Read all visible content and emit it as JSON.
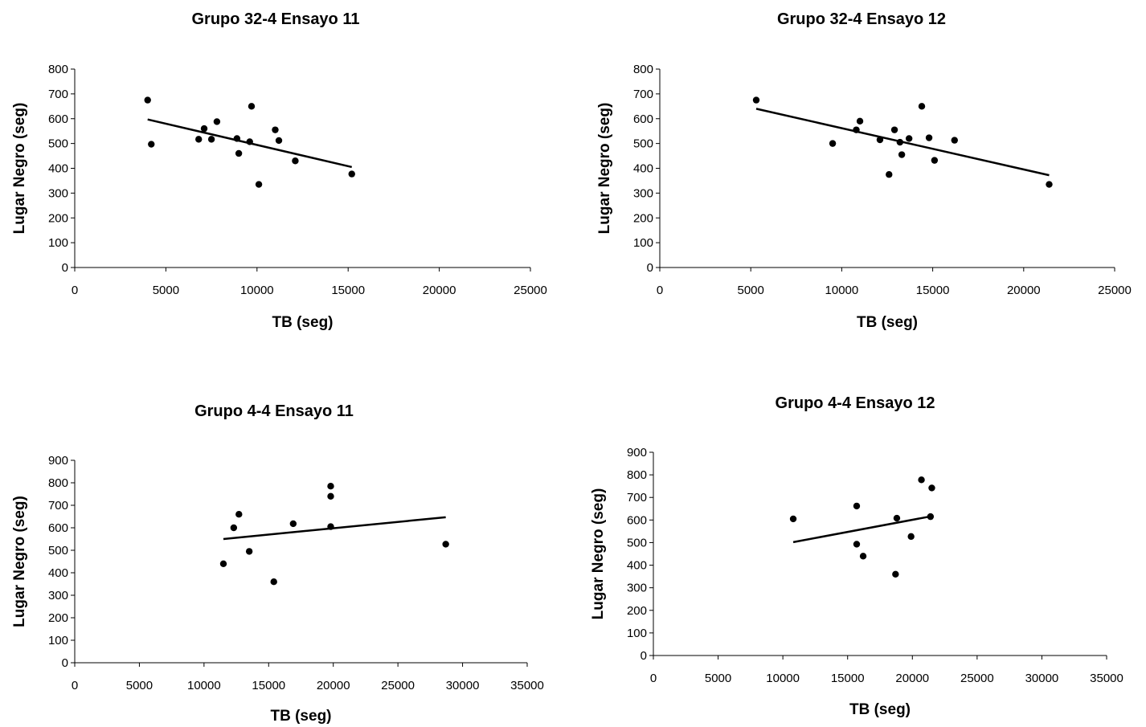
{
  "chart_data": [
    {
      "type": "scatter",
      "title": "Grupo 32-4 Ensayo 11",
      "xlabel": "TB (seg)",
      "ylabel": "Lugar Negro (seg)",
      "xlim": [
        0,
        25000
      ],
      "ylim": [
        0,
        800
      ],
      "xticks": [
        0,
        5000,
        10000,
        15000,
        20000,
        25000
      ],
      "yticks": [
        0,
        100,
        200,
        300,
        400,
        500,
        600,
        700,
        800
      ],
      "grid": false,
      "legend": "none",
      "x": [
        4000,
        4200,
        6800,
        7100,
        7500,
        7800,
        8900,
        9000,
        9600,
        9700,
        10100,
        11000,
        11200,
        12100,
        15200
      ],
      "y": [
        675,
        497,
        517,
        560,
        517,
        588,
        520,
        460,
        507,
        650,
        335,
        555,
        512,
        430,
        377
      ],
      "trendline": {
        "x": [
          4000,
          15200
        ],
        "y": [
          597,
          405
        ]
      }
    },
    {
      "type": "scatter",
      "title": "Grupo 32-4 Ensayo 12",
      "xlabel": "TB (seg)",
      "ylabel": "Lugar Negro (seg)",
      "xlim": [
        0,
        25000
      ],
      "ylim": [
        0,
        800
      ],
      "xticks": [
        0,
        5000,
        10000,
        15000,
        20000,
        25000
      ],
      "yticks": [
        0,
        100,
        200,
        300,
        400,
        500,
        600,
        700,
        800
      ],
      "grid": false,
      "legend": "none",
      "x": [
        5300,
        9500,
        10800,
        11000,
        12100,
        12600,
        12900,
        13200,
        13300,
        13700,
        14400,
        14800,
        15100,
        16200,
        21400
      ],
      "y": [
        675,
        500,
        555,
        590,
        515,
        375,
        555,
        505,
        455,
        520,
        650,
        523,
        432,
        513,
        335
      ],
      "trendline": {
        "x": [
          5300,
          21400
        ],
        "y": [
          640,
          372
        ]
      }
    },
    {
      "type": "scatter",
      "title": "Grupo 4-4 Ensayo 11",
      "xlabel": "TB (seg)",
      "ylabel": "Lugar Negro (seg)",
      "xlim": [
        0,
        35000
      ],
      "ylim": [
        0,
        900
      ],
      "xticks": [
        0,
        5000,
        10000,
        15000,
        20000,
        25000,
        30000,
        35000
      ],
      "yticks": [
        0,
        100,
        200,
        300,
        400,
        500,
        600,
        700,
        800,
        900
      ],
      "grid": false,
      "legend": "none",
      "x": [
        11500,
        12300,
        12700,
        13500,
        15400,
        16900,
        19800,
        19800,
        19800,
        28700
      ],
      "y": [
        440,
        600,
        660,
        495,
        360,
        618,
        785,
        740,
        605,
        527
      ],
      "trendline": {
        "x": [
          11500,
          28700
        ],
        "y": [
          550,
          647
        ]
      }
    },
    {
      "type": "scatter",
      "title": "Grupo 4-4 Ensayo 12",
      "xlabel": "TB (seg)",
      "ylabel": "Lugar Negro (seg)",
      "xlim": [
        0,
        35000
      ],
      "ylim": [
        0,
        900
      ],
      "xticks": [
        0,
        5000,
        10000,
        15000,
        20000,
        25000,
        30000,
        35000
      ],
      "yticks": [
        0,
        100,
        200,
        300,
        400,
        500,
        600,
        700,
        800,
        900
      ],
      "grid": false,
      "legend": "none",
      "x": [
        10800,
        15700,
        15700,
        16200,
        18700,
        18800,
        19900,
        20700,
        21400,
        21500
      ],
      "y": [
        605,
        662,
        493,
        440,
        360,
        608,
        527,
        778,
        615,
        742
      ],
      "trendline": {
        "x": [
          10800,
          21500
        ],
        "y": [
          502,
          617
        ]
      }
    }
  ]
}
